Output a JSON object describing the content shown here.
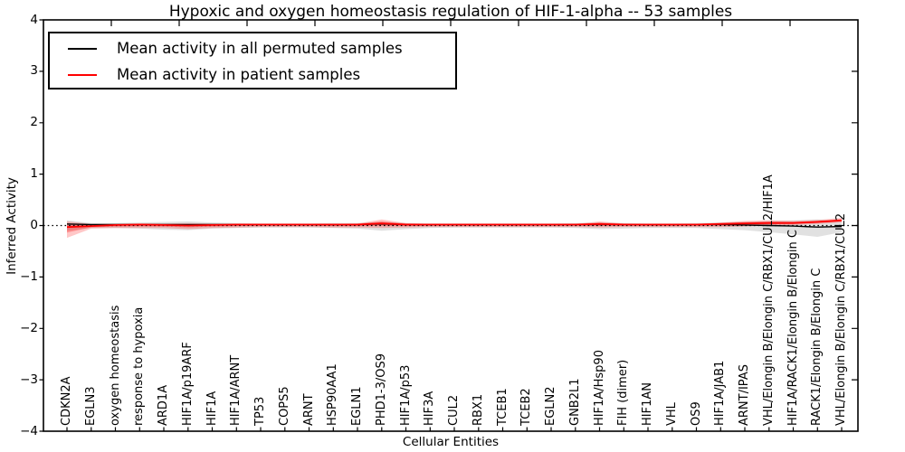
{
  "figure": {
    "title": "Hypoxic and oxygen homeostasis regulation of HIF-1-alpha -- 53 samples",
    "xlabel": "Cellular Entities",
    "ylabel": "Inferred Activity",
    "legend": [
      {
        "label": "Mean activity in all permuted samples",
        "color": "#000000"
      },
      {
        "label": "Mean activity in patient samples",
        "color": "#ff0000"
      }
    ]
  },
  "chart_data": {
    "type": "line",
    "title": "Hypoxic and oxygen homeostasis regulation of HIF-1-alpha -- 53 samples",
    "xlabel": "Cellular Entities",
    "ylabel": "Inferred Activity",
    "ylim": [
      -4,
      4
    ],
    "yticks": [
      4,
      3,
      2,
      1,
      0,
      -1,
      -2,
      -3,
      -4
    ],
    "grid": false,
    "legend_position": "upper left",
    "zero_reference_line": 0,
    "categories": [
      "CDKN2A",
      "EGLN3",
      "oxygen homeostasis",
      "response to hypoxia",
      "ARD1A",
      "HIF1A/p19ARF",
      "HIF1A",
      "HIF1A/ARNT",
      "TP53",
      "COPS5",
      "ARNT",
      "HSP90AA1",
      "EGLN1",
      "PHD1-3/OS9",
      "HIF1A/p53",
      "HIF3A",
      "CUL2",
      "RBX1",
      "TCEB1",
      "TCEB2",
      "EGLN2",
      "GNB2L1",
      "HIF1A/Hsp90",
      "FIH (dimer)",
      "HIF1AN",
      "VHL",
      "OS9",
      "HIF1A/JAB1",
      "ARNT/IPAS",
      "VHL/Elongin B/Elongin C/RBX1/CUL2/HIF1A",
      "HIF1A/RACK1/Elongin B/Elongin C",
      "RACK1/Elongin B/Elongin C",
      "VHL/Elongin B/Elongin C/RBX1/CUL2"
    ],
    "series": [
      {
        "name": "Mean activity in all permuted samples",
        "color": "#000000",
        "style": "solid",
        "values": [
          0.03,
          0.02,
          0.02,
          0.02,
          0.02,
          0.02,
          0.02,
          0.02,
          0.02,
          0.02,
          0.02,
          0.02,
          0.02,
          0.03,
          0.02,
          0.02,
          0.02,
          0.02,
          0.02,
          0.02,
          0.02,
          0.02,
          0.02,
          0.02,
          0.02,
          0.02,
          0.02,
          0.02,
          0.01,
          0.0,
          -0.01,
          -0.03,
          -0.02
        ]
      },
      {
        "name": "Mean activity in patient samples",
        "color": "#ff0000",
        "style": "solid",
        "values": [
          -0.03,
          -0.01,
          0.01,
          0.02,
          0.01,
          0.0,
          0.01,
          0.02,
          0.02,
          0.02,
          0.02,
          0.02,
          0.02,
          0.04,
          0.02,
          0.02,
          0.02,
          0.02,
          0.02,
          0.02,
          0.02,
          0.02,
          0.03,
          0.02,
          0.02,
          0.02,
          0.02,
          0.03,
          0.04,
          0.05,
          0.05,
          0.07,
          0.1
        ]
      }
    ],
    "bands": [
      {
        "name": "permuted-samples-range",
        "color": "#787878",
        "opacity": 0.22,
        "upper": [
          0.1,
          0.05,
          0.05,
          0.06,
          0.07,
          0.08,
          0.06,
          0.05,
          0.04,
          0.04,
          0.04,
          0.05,
          0.05,
          0.07,
          0.05,
          0.04,
          0.04,
          0.04,
          0.04,
          0.04,
          0.04,
          0.05,
          0.06,
          0.05,
          0.04,
          0.04,
          0.05,
          0.06,
          0.07,
          0.09,
          0.1,
          0.12,
          0.09
        ],
        "lower": [
          -0.1,
          -0.05,
          -0.05,
          -0.06,
          -0.08,
          -0.09,
          -0.06,
          -0.05,
          -0.04,
          -0.04,
          -0.04,
          -0.05,
          -0.06,
          -0.1,
          -0.07,
          -0.05,
          -0.04,
          -0.04,
          -0.04,
          -0.04,
          -0.04,
          -0.05,
          -0.07,
          -0.06,
          -0.05,
          -0.05,
          -0.05,
          -0.07,
          -0.09,
          -0.13,
          -0.17,
          -0.22,
          -0.13
        ]
      },
      {
        "name": "patient-samples-range",
        "color": "#ff0000",
        "opacity": 0.22,
        "upper": [
          0.08,
          0.03,
          0.03,
          0.04,
          0.04,
          0.05,
          0.04,
          0.03,
          0.03,
          0.03,
          0.03,
          0.03,
          0.04,
          0.12,
          0.05,
          0.03,
          0.03,
          0.03,
          0.03,
          0.03,
          0.03,
          0.03,
          0.08,
          0.04,
          0.03,
          0.03,
          0.03,
          0.06,
          0.09,
          0.1,
          0.09,
          0.11,
          0.15
        ],
        "lower": [
          -0.24,
          -0.06,
          -0.05,
          -0.05,
          -0.05,
          -0.07,
          -0.05,
          -0.04,
          -0.03,
          -0.03,
          -0.03,
          -0.04,
          -0.04,
          -0.05,
          -0.04,
          -0.03,
          -0.03,
          -0.03,
          -0.03,
          -0.03,
          -0.03,
          -0.03,
          -0.04,
          -0.03,
          -0.03,
          -0.03,
          -0.03,
          -0.03,
          -0.02,
          0.0,
          0.01,
          0.03,
          0.06
        ]
      }
    ]
  }
}
